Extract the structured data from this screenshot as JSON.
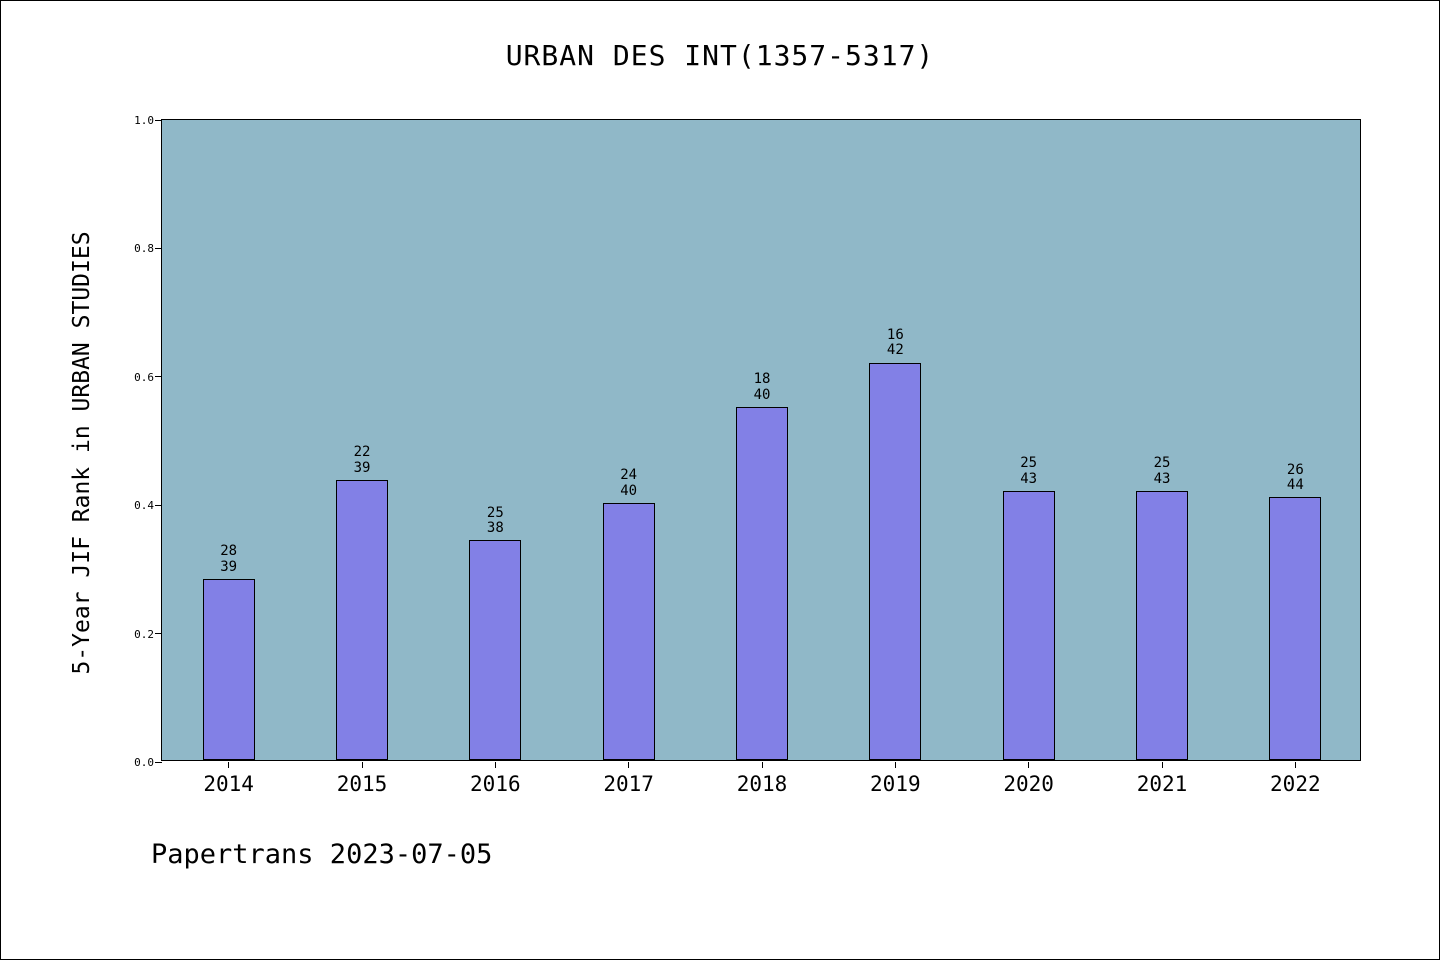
{
  "chart_data": {
    "type": "bar",
    "title": "URBAN DES INT(1357-5317)",
    "ylabel": "5-Year JIF Rank in URBAN STUDIES",
    "xlabel": "",
    "categories": [
      "2014",
      "2015",
      "2016",
      "2017",
      "2018",
      "2019",
      "2020",
      "2021",
      "2022"
    ],
    "values": [
      0.282,
      0.436,
      0.342,
      0.4,
      0.55,
      0.619,
      0.419,
      0.419,
      0.409
    ],
    "bar_label_rank": [
      "28",
      "22",
      "25",
      "24",
      "18",
      "16",
      "25",
      "25",
      "26"
    ],
    "bar_label_total": [
      "39",
      "39",
      "38",
      "40",
      "40",
      "42",
      "43",
      "43",
      "44"
    ],
    "ytick_labels": [
      "0.0",
      "0.2",
      "0.4",
      "0.6",
      "0.8",
      "1.0"
    ],
    "yticks": [
      0.0,
      0.2,
      0.4,
      0.6,
      0.8,
      1.0
    ],
    "ylim": [
      0,
      1
    ],
    "grid": false,
    "legend": "none",
    "bar_color": "#8280e6",
    "bar_edge_color": "#000000",
    "plot_bg": "#90b8c8",
    "annotation": "Papertrans 2023-07-05"
  }
}
